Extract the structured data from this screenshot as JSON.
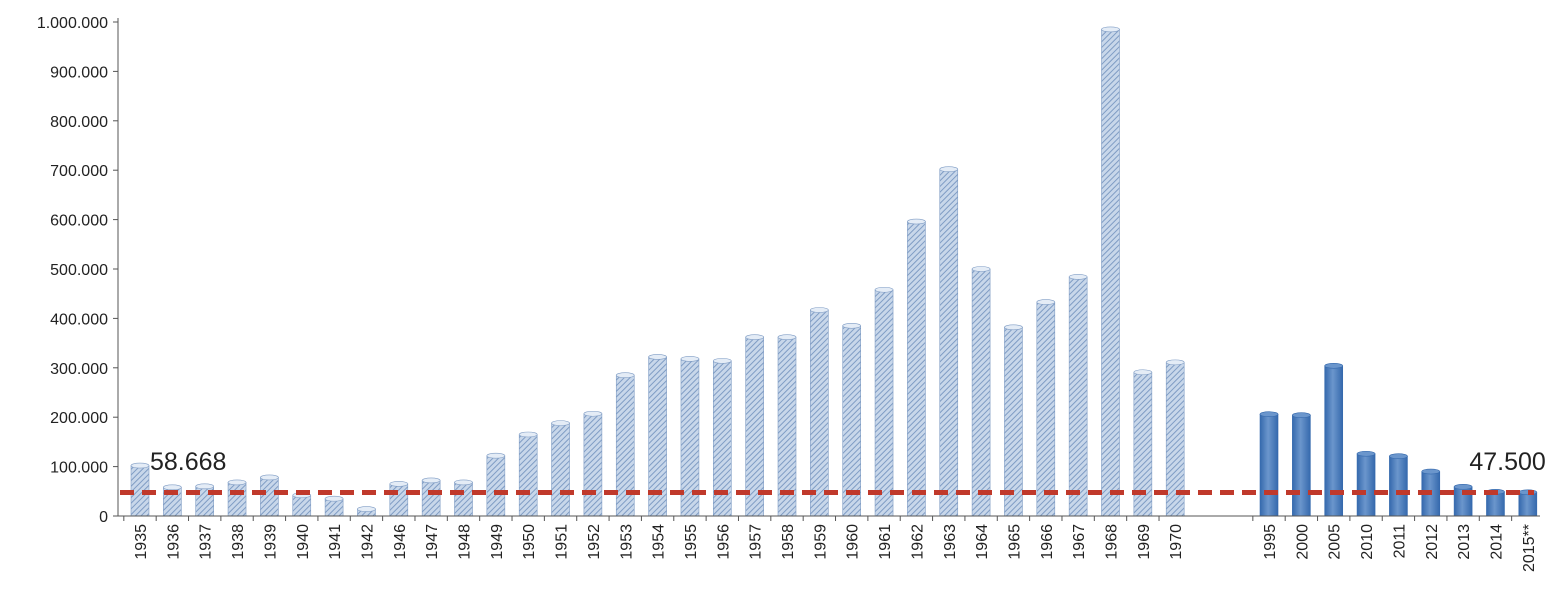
{
  "chart_data": {
    "type": "bar",
    "title": "",
    "xlabel": "",
    "ylabel": "",
    "ylim": [
      0,
      1000000
    ],
    "yticks": [
      0,
      100000,
      200000,
      300000,
      400000,
      500000,
      600000,
      700000,
      800000,
      900000,
      1000000
    ],
    "ytick_labels": [
      "0",
      "100.000",
      "200.000",
      "300.000",
      "400.000",
      "500.000",
      "600.000",
      "700.000",
      "800.000",
      "900.000",
      "1.000.000"
    ],
    "grid": false,
    "legend": "none",
    "groups": [
      {
        "style": "hatched-light-blue",
        "categories": [
          "1935",
          "1936",
          "1937",
          "1938",
          "1939",
          "1940",
          "1941",
          "1942",
          "1946",
          "1947",
          "1948",
          "1949",
          "1950",
          "1951",
          "1952",
          "1953",
          "1954",
          "1955",
          "1956",
          "1957",
          "1958",
          "1959",
          "1960",
          "1961",
          "1962",
          "1963",
          "1964",
          "1965",
          "1966",
          "1967",
          "1968",
          "1969",
          "1970"
        ],
        "values": [
          102000,
          58000,
          60000,
          68000,
          78000,
          42000,
          35000,
          14000,
          65000,
          72000,
          68000,
          122000,
          165000,
          188000,
          207000,
          285000,
          322000,
          318000,
          314000,
          362000,
          362000,
          417000,
          385000,
          458000,
          596000,
          702000,
          500000,
          382000,
          433000,
          484000,
          985000,
          291000,
          311000
        ]
      },
      {
        "style": "solid-dark-blue",
        "categories": [
          "1995",
          "2000",
          "2005",
          "2010",
          "2011",
          "2012",
          "2013",
          "2014",
          "2015**"
        ],
        "values": [
          206000,
          204000,
          304000,
          126000,
          121000,
          90000,
          59000,
          49000,
          48000
        ]
      }
    ],
    "reference_line": {
      "value": 47500,
      "style": "dashed",
      "color": "#c0392b"
    },
    "annotations": [
      {
        "text": "58.668",
        "near_category": "1935"
      },
      {
        "text": "47.500",
        "near_category": "2015**"
      }
    ],
    "colors": {
      "hatched_fill": "#c8d7ea",
      "hatched_stripe": "#7f9cc4",
      "solid_fill": "#3569ad",
      "solid_highlight": "#6b96cc",
      "axis": "#555555",
      "reference": "#c0392b",
      "text": "#222222"
    }
  }
}
